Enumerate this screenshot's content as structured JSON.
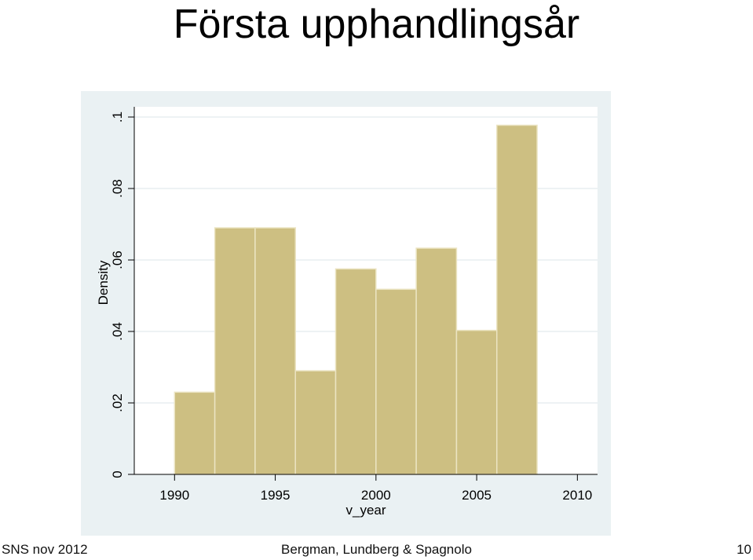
{
  "slide": {
    "title": "Första upphandlingsår",
    "footer_left": "SNS nov 2012",
    "footer_center": "Bergman, Lundberg & Spagnolo",
    "footer_right": "10"
  },
  "colors": {
    "outer_background": "#eaf1f3",
    "plot_background": "#ffffff",
    "bar_fill": "#cdbf82",
    "bar_edge": "#ebe4c2",
    "grid": "#e8eef0",
    "axis": "#000000"
  },
  "chart_data": {
    "type": "bar",
    "title": "",
    "xlabel": "v_year",
    "ylabel": "Density",
    "xlim": [
      1988,
      2011
    ],
    "ylim": [
      0,
      0.1
    ],
    "grid": true,
    "x_ticks": [
      1990,
      1995,
      2000,
      2005,
      2010
    ],
    "x_tick_labels": [
      "1990",
      "1995",
      "2000",
      "2005",
      "2010"
    ],
    "y_ticks": [
      0,
      0.02,
      0.04,
      0.06,
      0.08,
      0.1
    ],
    "y_tick_labels": [
      "0",
      ".02",
      ".04",
      ".06",
      ".08",
      ".1"
    ],
    "bins": [
      {
        "x0": 1990,
        "x1": 1992,
        "value": 0.023
      },
      {
        "x0": 1992,
        "x1": 1994,
        "value": 0.069
      },
      {
        "x0": 1994,
        "x1": 1996,
        "value": 0.069
      },
      {
        "x0": 1996,
        "x1": 1998,
        "value": 0.029
      },
      {
        "x0": 1998,
        "x1": 2000,
        "value": 0.0575
      },
      {
        "x0": 2000,
        "x1": 2002,
        "value": 0.0518
      },
      {
        "x0": 2002,
        "x1": 2004,
        "value": 0.0633
      },
      {
        "x0": 2004,
        "x1": 2006,
        "value": 0.0403
      },
      {
        "x0": 2006,
        "x1": 2008,
        "value": 0.0977
      }
    ]
  }
}
